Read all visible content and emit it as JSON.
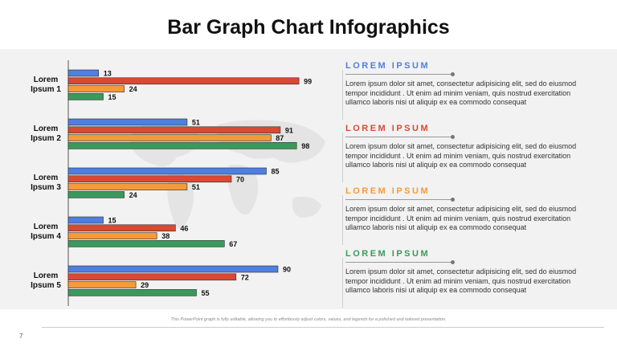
{
  "title": "Bar Graph Chart Infographics",
  "colors": {
    "blue": "#4f7fe0",
    "red": "#d94a32",
    "orange": "#f59a3a",
    "green": "#3a9a5b",
    "bar_stroke": "#2b2b2b"
  },
  "chart_data": {
    "type": "bar",
    "orientation": "horizontal",
    "categories": [
      "Lorem Ipsum 1",
      "Lorem Ipsum 2",
      "Lorem Ipsum 3",
      "Lorem Ipsum 4",
      "Lorem Ipsum 5"
    ],
    "category_lines": [
      [
        "Lorem",
        "Ipsum 1"
      ],
      [
        "Lorem",
        "Ipsum 2"
      ],
      [
        "Lorem",
        "Ipsum 3"
      ],
      [
        "Lorem",
        "Ipsum 4"
      ],
      [
        "Lorem",
        "Ipsum 5"
      ]
    ],
    "series": [
      {
        "values": [
          13,
          51,
          85,
          15,
          90
        ],
        "color": "#4f7fe0"
      },
      {
        "values": [
          99,
          91,
          70,
          46,
          72
        ],
        "color": "#d94a32"
      },
      {
        "values": [
          24,
          87,
          51,
          38,
          29
        ],
        "color": "#f59a3a"
      },
      {
        "values": [
          15,
          98,
          24,
          67,
          55
        ],
        "color": "#3a9a5b"
      }
    ],
    "xlim": [
      0,
      100
    ],
    "data_labels": true,
    "grid": false,
    "legend": "none"
  },
  "descriptions": [
    {
      "heading": "LOREM IPSUM",
      "color": "#4f7fe0",
      "body": "Lorem ipsum dolor sit amet, consectetur  adipisicing elit, sed do eiusmod tempor incididunt . Ut enim ad minim veniam, quis nostrud exercitation ullamco laboris nisi ut aliquip ex ea commodo consequat"
    },
    {
      "heading": "LOREM IPSUM",
      "color": "#d94a32",
      "body": "Lorem ipsum dolor sit amet, consectetur  adipisicing elit, sed do eiusmod tempor incididunt . Ut enim ad minim veniam, quis nostrud exercitation ullamco laboris nisi ut aliquip ex ea commodo consequat"
    },
    {
      "heading": "LOREM IPSUM",
      "color": "#f59a3a",
      "body": "Lorem ipsum dolor sit amet, consectetur  adipisicing elit, sed do eiusmod tempor incididunt . Ut enim ad minim veniam, quis nostrud exercitation ullamco laboris nisi ut aliquip ex ea commodo consequat"
    },
    {
      "heading": "LOREM IPSUM",
      "color": "#3a9a5b",
      "body": "Lorem ipsum dolor sit amet, consectetur  adipisicing elit, sed do eiusmod tempor incididunt . Ut enim ad minim veniam, quis nostrud exercitation ullamco laboris nisi ut aliquip ex ea commodo consequat"
    }
  ],
  "footnote": "This PowerPoint graph is fully editable, allowing you to effortlessly adjust colors, values, and legends for a polished and tailored presentation.",
  "page_number": "7"
}
